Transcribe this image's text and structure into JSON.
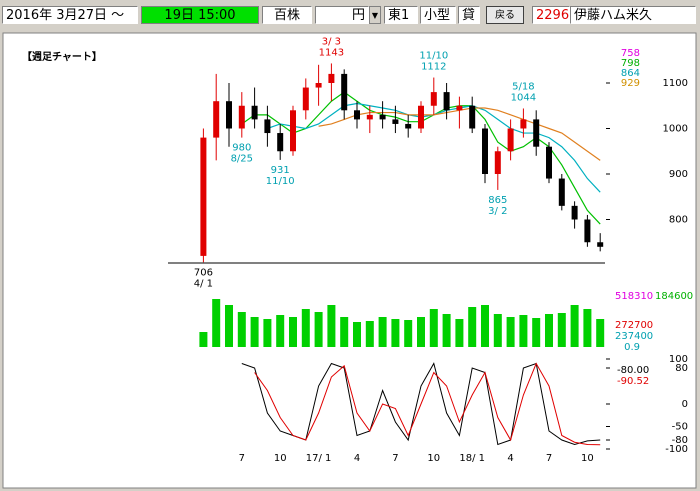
{
  "header": {
    "date": "2016年 3月27日 ～",
    "time": "19日 15:00",
    "unit": "百株",
    "price_unit": "円",
    "market": "東1",
    "size": "小型",
    "lending": "貸",
    "back_button": "戻る",
    "code": "2296",
    "name": "伊藤ハム米久"
  },
  "chart_data": {
    "type": "candlestick",
    "title": "【週足チャート】",
    "categories": [
      null,
      null,
      null,
      "7",
      null,
      null,
      "10",
      null,
      null,
      "17/ 1",
      null,
      null,
      "4",
      null,
      null,
      "7",
      null,
      null,
      "10",
      null,
      null,
      "18/ 1",
      null,
      null,
      "4",
      null,
      null,
      "7",
      null,
      null,
      "10",
      null
    ],
    "open": [
      720,
      980,
      1060,
      1000,
      1050,
      1020,
      990,
      950,
      1040,
      1090,
      1100,
      1120,
      1040,
      1020,
      1030,
      1020,
      1010,
      1000,
      1050,
      1080,
      1040,
      1050,
      1000,
      900,
      950,
      1000,
      1020,
      960,
      890,
      830,
      800,
      750
    ],
    "high": [
      1000,
      1120,
      1100,
      1080,
      1090,
      1050,
      1010,
      1050,
      1110,
      1140,
      1143,
      1130,
      1060,
      1050,
      1060,
      1050,
      1030,
      1060,
      1112,
      1100,
      1070,
      1070,
      1010,
      960,
      1020,
      1044,
      1040,
      970,
      900,
      840,
      810,
      770
    ],
    "low": [
      706,
      930,
      960,
      980,
      1000,
      960,
      931,
      940,
      1020,
      1050,
      1060,
      1020,
      1000,
      990,
      1000,
      990,
      980,
      990,
      1030,
      1020,
      1000,
      990,
      880,
      865,
      930,
      980,
      940,
      880,
      820,
      780,
      740,
      730
    ],
    "close": [
      980,
      1060,
      1000,
      1050,
      1020,
      990,
      950,
      1040,
      1090,
      1100,
      1120,
      1040,
      1020,
      1030,
      1020,
      1010,
      1000,
      1050,
      1080,
      1040,
      1050,
      1000,
      900,
      950,
      1000,
      1020,
      960,
      890,
      830,
      800,
      750,
      740
    ],
    "up_color": "#e00000",
    "down_color": "#000000",
    "ylim": [
      700,
      1200
    ],
    "yticks": [
      800,
      900,
      1000,
      1100
    ],
    "moving_averages": [
      {
        "color": "#00c000",
        "values": [
          null,
          null,
          null,
          1010,
          1030,
          1030,
          1010,
          990,
          1000,
          1030,
          1060,
          1080,
          1060,
          1040,
          1030,
          1025,
          1015,
          1015,
          1030,
          1045,
          1050,
          1050,
          1020,
          970,
          950,
          960,
          980,
          960,
          920,
          870,
          820,
          790
        ]
      },
      {
        "color": "#00b0c0",
        "values": [
          null,
          null,
          null,
          null,
          null,
          1000,
          1010,
          1005,
          1000,
          1010,
          1030,
          1050,
          1055,
          1050,
          1045,
          1040,
          1030,
          1025,
          1030,
          1040,
          1045,
          1050,
          1040,
          1020,
          1000,
          990,
          990,
          980,
          960,
          930,
          890,
          860
        ]
      },
      {
        "color": "#e08020",
        "values": [
          null,
          null,
          null,
          null,
          null,
          null,
          null,
          null,
          null,
          1005,
          1010,
          1020,
          1030,
          1035,
          1035,
          1035,
          1030,
          1030,
          1030,
          1035,
          1040,
          1045,
          1045,
          1040,
          1030,
          1020,
          1010,
          1000,
          990,
          970,
          950,
          930
        ]
      }
    ],
    "legend": [
      {
        "label": "758",
        "color": "#e000e0"
      },
      {
        "label": "798",
        "color": "#00b000"
      },
      {
        "label": "864",
        "color": "#00a0b0"
      },
      {
        "label": "929",
        "color": "#d09000"
      }
    ],
    "annotations": [
      {
        "date": "3/ 3",
        "price": 1143,
        "kind": "high",
        "color": "#e00000"
      },
      {
        "date": "11/10",
        "price": 1112,
        "kind": "high",
        "color": "#00a0b0"
      },
      {
        "date": "5/18",
        "price": 1044,
        "kind": "high",
        "color": "#00a0b0"
      },
      {
        "date": "11/10",
        "price": 931,
        "kind": "low",
        "color": "#00a0b0"
      },
      {
        "date": "8/25",
        "price": 980,
        "kind": "low",
        "color": "#00a0b0"
      },
      {
        "date": "3/ 2",
        "price": 865,
        "kind": "low",
        "color": "#00a0b0"
      },
      {
        "date": "4/ 1",
        "price": 706,
        "kind": "low",
        "color": "#000000"
      }
    ],
    "volume": {
      "color": "#00d000",
      "vlim": [
        0,
        600000
      ],
      "values": [
        150000,
        480000,
        420000,
        350000,
        300000,
        280000,
        320000,
        300000,
        380000,
        350000,
        420000,
        300000,
        250000,
        260000,
        300000,
        280000,
        270000,
        300000,
        380000,
        330000,
        280000,
        400000,
        420000,
        330000,
        300000,
        320000,
        290000,
        330000,
        340000,
        420000,
        380000,
        280000
      ],
      "labels": [
        {
          "text": "518310",
          "color": "#e000e0"
        },
        {
          "text": "184600",
          "color": "#00b000"
        },
        {
          "text": "272700",
          "color": "#e00000"
        },
        {
          "text": "237400",
          "color": "#00a0b0"
        },
        {
          "text": "0.9",
          "color": "#00a0b0"
        }
      ]
    },
    "oscillator": {
      "ylim": [
        -100,
        100
      ],
      "yticks": [
        100,
        80,
        0,
        -50,
        -80,
        -100
      ],
      "series": [
        {
          "color": "#000000",
          "values": [
            null,
            null,
            null,
            90,
            80,
            -20,
            -60,
            -70,
            -80,
            40,
            90,
            80,
            -70,
            -60,
            30,
            -40,
            -80,
            40,
            90,
            -20,
            -70,
            80,
            70,
            -90,
            -80,
            80,
            90,
            -60,
            -80,
            -90,
            -82,
            -80
          ],
          "value_labels": [
            null,
            null,
            null,
            null,
            null,
            null,
            null,
            null,
            null,
            null,
            null,
            null,
            null,
            null,
            null,
            null,
            null,
            null,
            null,
            null,
            null,
            null,
            null,
            null,
            null,
            null,
            null,
            null,
            null,
            null,
            null,
            "-80.00"
          ]
        },
        {
          "color": "#e00000",
          "values": [
            null,
            null,
            null,
            null,
            70,
            30,
            -30,
            -70,
            -80,
            -20,
            60,
            85,
            -20,
            -60,
            0,
            -10,
            -70,
            0,
            70,
            40,
            -40,
            20,
            70,
            -30,
            -80,
            20,
            90,
            40,
            -70,
            -85,
            -90,
            -90.52
          ],
          "value_labels": [
            null,
            null,
            null,
            null,
            null,
            null,
            null,
            null,
            null,
            null,
            null,
            null,
            null,
            null,
            null,
            null,
            null,
            null,
            null,
            null,
            null,
            null,
            null,
            null,
            null,
            null,
            null,
            null,
            null,
            null,
            null,
            "-90.52"
          ]
        }
      ]
    }
  }
}
